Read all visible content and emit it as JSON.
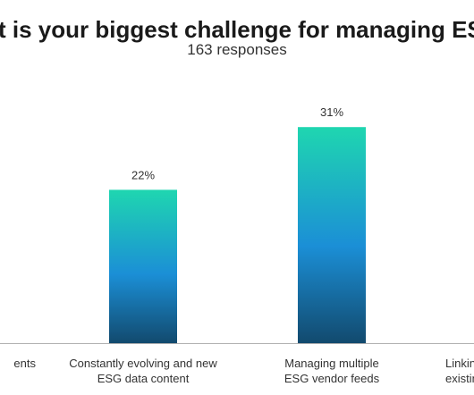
{
  "chart_data": {
    "type": "bar",
    "title": "t is your biggest challenge for managing ESG d",
    "subtitle": "163 responses",
    "categories": [
      [
        "ents"
      ],
      [
        "Constantly evolving and new",
        "ESG data content"
      ],
      [
        "Managing multiple",
        "ESG vendor feeds"
      ],
      [
        "Linkin",
        "existin"
      ]
    ],
    "values": [
      null,
      22,
      31,
      null
    ],
    "value_labels": [
      "",
      "22%",
      "31%",
      ""
    ],
    "ylim": [
      0,
      40
    ],
    "grid": false,
    "colors": {
      "bar_top": "#1fd6b0",
      "bar_mid": "#1b8fd6",
      "bar_bottom": "#124a6e",
      "axis": "#b0b0b0"
    }
  }
}
